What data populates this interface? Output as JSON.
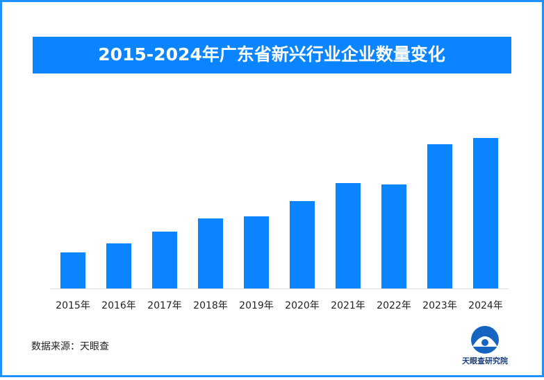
{
  "chart_data": {
    "type": "bar",
    "title": "2015-2024年广东省新兴行业企业数量变化",
    "categories": [
      "2015年",
      "2016年",
      "2017年",
      "2018年",
      "2019年",
      "2020年",
      "2021年",
      "2022年",
      "2023年",
      "2024年"
    ],
    "values": [
      52,
      65,
      82,
      101,
      104,
      126,
      152,
      150,
      208,
      217
    ],
    "color": "#0a84ff"
  },
  "source": "数据来源：天眼查",
  "brand": "天眼查研究院"
}
